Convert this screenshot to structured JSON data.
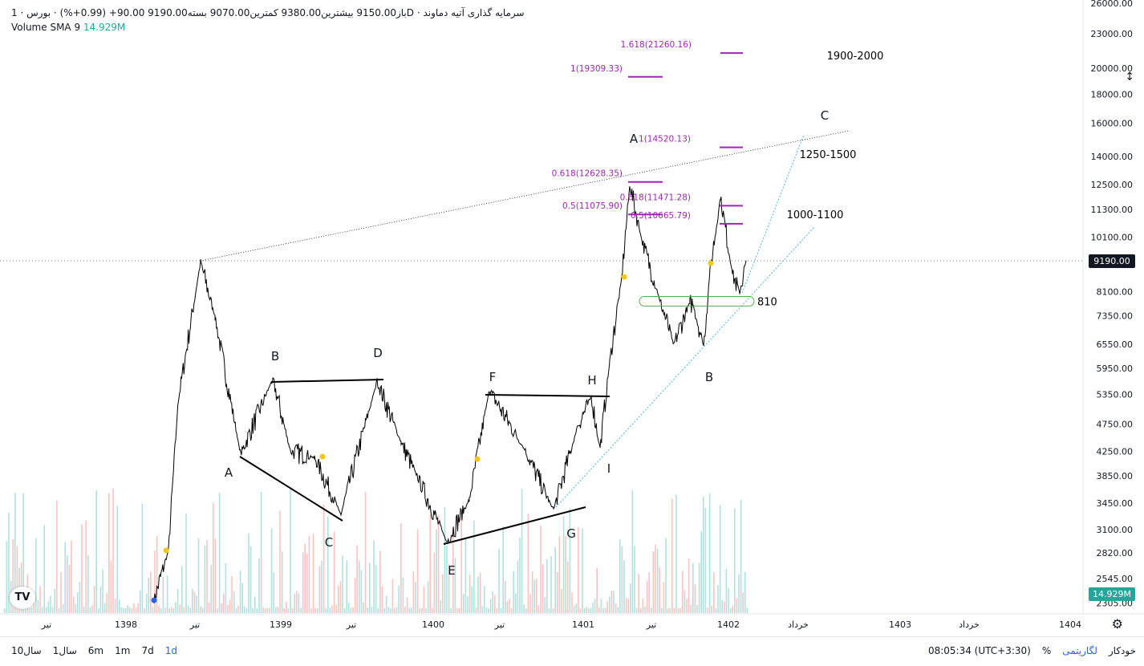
{
  "legend": {
    "title": "سرمایه گذاری آتیه دماوند",
    "interval": "1D",
    "exchange": "بورس",
    "ohlc": "باز9150.00  بیشترین9380.00  کمترین9070.00  بسته9190.00  90.00+  (0.99+%)",
    "volume_label": "Volume SMA 9",
    "volume_value": "14.929M"
  },
  "price_tag": "9190.00",
  "volume_tag": "14.929M",
  "chart_data": {
    "type": "line",
    "title": "سرمایه گذاری آتیه دماوند",
    "y_scale": "log",
    "ylim": [
      2300,
      26000
    ],
    "y_ticks": [
      "26000.00",
      "23000.00",
      "20000.00",
      "18000.00",
      "16000.00",
      "14000.00",
      "12500.00",
      "11300.00",
      "10100.00",
      "9190.00",
      "8100.00",
      "7350.00",
      "6550.00",
      "5950.00",
      "5350.00",
      "4750.00",
      "4250.00",
      "3850.00",
      "3450.00",
      "3100.00",
      "2820.00",
      "2545.00",
      "2305.00"
    ],
    "x_ticks": [
      "تیر",
      "1398",
      "تیر",
      "1399",
      "تیر",
      "1400",
      "تیر",
      "1401",
      "تیر",
      "1402",
      "خرداد",
      "1403",
      "خرداد",
      "1404"
    ],
    "close_pivots": [
      2330,
      2850,
      5200,
      9150,
      7300,
      4200,
      5700,
      4250,
      4150,
      3300,
      5650,
      4400,
      3850,
      2950,
      3500,
      5450,
      4250,
      3350,
      4700,
      5300,
      4300,
      6100,
      8600,
      12500,
      10000,
      7800,
      6550,
      7800,
      7650,
      6500,
      8800,
      11900,
      8700,
      8100,
      9190
    ],
    "last_close": 9190,
    "wave_labels": [
      "A",
      "B",
      "C",
      "D",
      "E",
      "F",
      "G",
      "H",
      "I",
      "A",
      "B",
      "C"
    ],
    "fib_levels": [
      {
        "label": "1.618(21260.16)",
        "value": 21260.16
      },
      {
        "label": "1(19309.33)",
        "value": 19309.33
      },
      {
        "label": "1(14520.13)",
        "value": 14520.13
      },
      {
        "label": "0.618(12628.35)",
        "value": 12628.35
      },
      {
        "label": "0.618(11471.28)",
        "value": 11471.28
      },
      {
        "label": "0.5(11075.90)",
        "value": 11075.9
      },
      {
        "label": "0.5(10665.79)",
        "value": 10665.79
      }
    ],
    "target_zones": [
      "1900-2000",
      "1250-1500",
      "1000-1100"
    ],
    "support_label": "810",
    "support_zone": [
      7650,
      7950
    ],
    "colors": {
      "price": "#000000",
      "fib": "#9c27b0",
      "trend": "#4db6d8",
      "support": "#4caf50",
      "vol_up": "#26a69a",
      "vol_down": "#ef5350"
    }
  },
  "bottom": {
    "ranges": [
      "10سال",
      "1سال",
      "6m",
      "1m",
      "7d",
      "1d"
    ],
    "time": "08:05:34 (UTC+3:30)",
    "percent": "%",
    "log": "لگاریتمی",
    "auto": "خودکار"
  }
}
